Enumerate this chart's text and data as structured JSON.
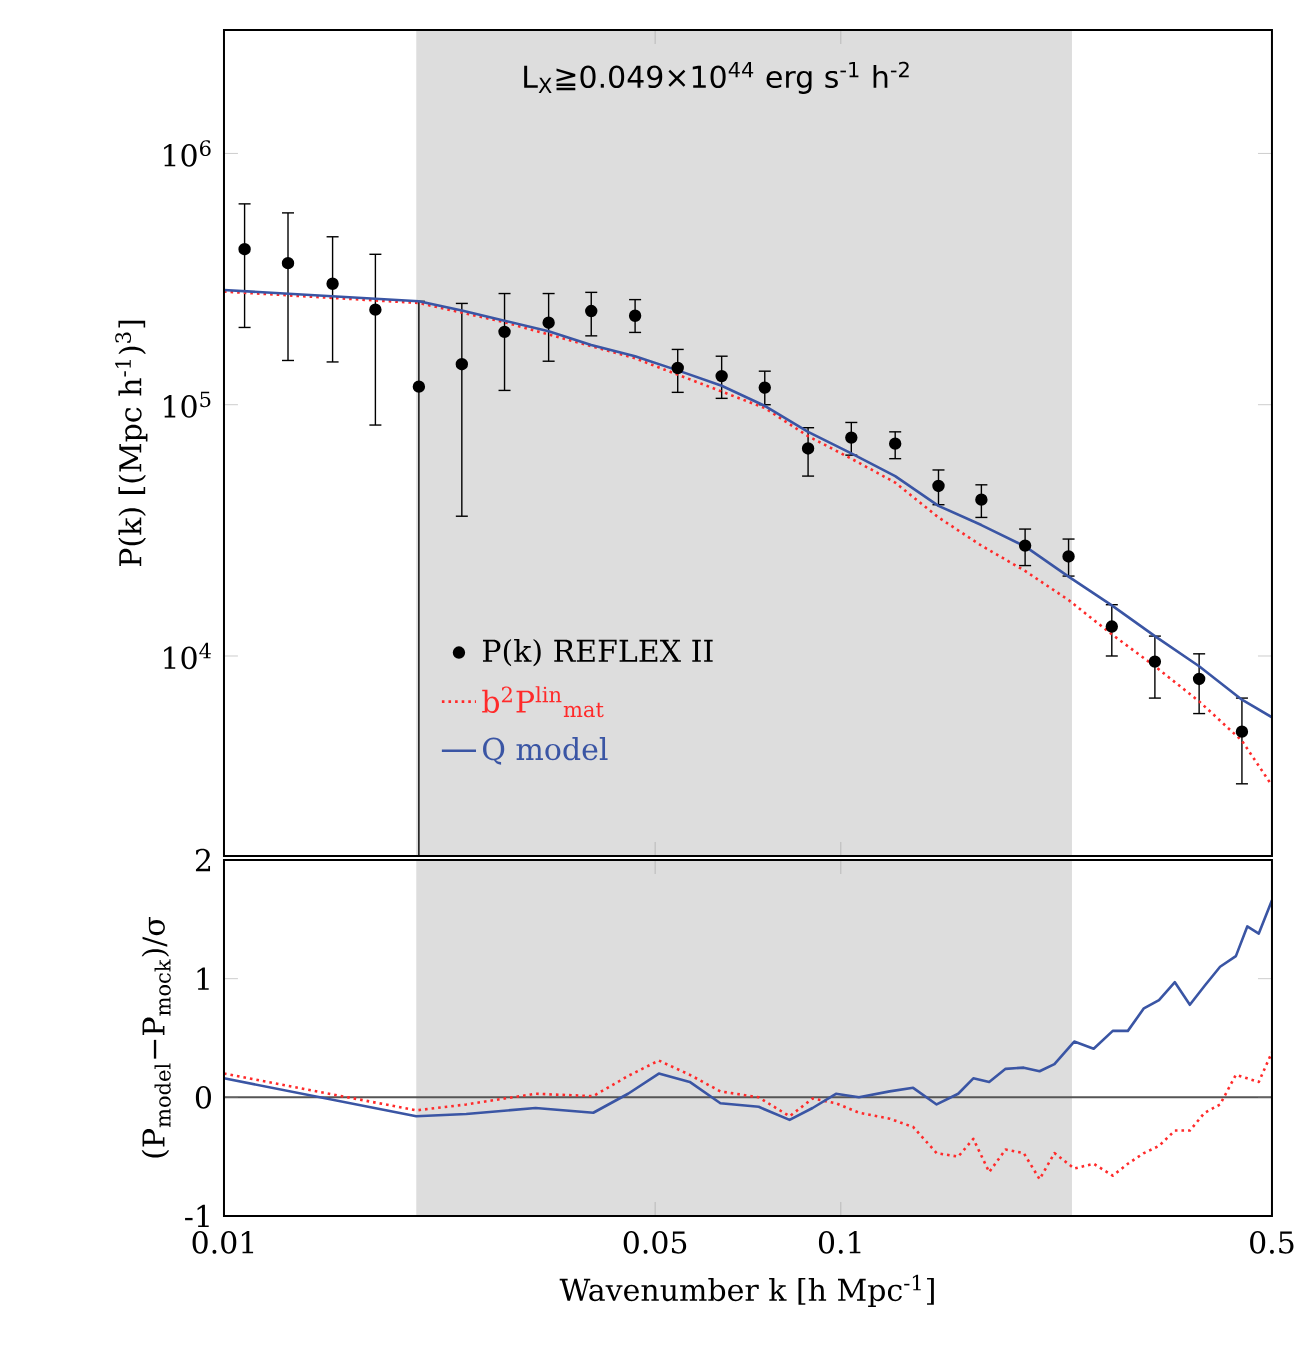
{
  "chart_data": [
    {
      "type": "line",
      "ylabel": "P(k) [(Mpc h$^{-1}$)$^{3}$]",
      "annotations": [
        "L$_{X}$≧0.049×10$^{44}$ erg s$^{-1}$ h$^{-2}$"
      ],
      "log": "xy",
      "xlim": [
        0.01,
        0.5
      ],
      "ylim": [
        1600,
        3100000
      ],
      "xticks": [
        0.01,
        0.05,
        0.1,
        0.5
      ],
      "yticks": [
        {
          "value": 10000,
          "label": "10$^{4}$"
        },
        {
          "value": 100000,
          "label": "10$^{5}$"
        },
        {
          "value": 1000000,
          "label": "10$^{6}$"
        }
      ],
      "tick_labels": "y",
      "legend": "bottom left",
      "bands": [
        {
          "axis": "x",
          "from": 0.0205,
          "to": 0.237,
          "color": "#dddddd"
        }
      ],
      "series": [
        {
          "name": "P(k) REFLEX II",
          "type": "scatter",
          "marker": "circle",
          "color": "#000000",
          "x": [
            0.0108,
            0.0127,
            0.015,
            0.0176,
            0.0207,
            0.0243,
            0.0285,
            0.0336,
            0.0394,
            0.0464,
            0.0544,
            0.0641,
            0.0753,
            0.0885,
            0.104,
            0.1225,
            0.144,
            0.169,
            0.199,
            0.234,
            0.275,
            0.323,
            0.381,
            0.447
          ],
          "values": [
            416000,
            366000,
            303000,
            239000,
            118000,
            145000,
            195000,
            212000,
            236000,
            226000,
            140000,
            130000,
            117000,
            67000,
            74000,
            70000,
            47500,
            41900,
            27500,
            24900,
            13100,
            9500,
            8100,
            5000
          ],
          "errors": [
            [
              203000,
              630000
            ],
            [
              150000,
              580000
            ],
            [
              148000,
              466000
            ],
            [
              83000,
              397000
            ],
            [
              1600,
              258000
            ],
            [
              36000,
              253000
            ],
            [
              114000,
              277000
            ],
            [
              149000,
              277000
            ],
            [
              188000,
              280000
            ],
            [
              194000,
              262000
            ],
            [
              112000,
              166000
            ],
            [
              106000,
              156000
            ],
            [
              100000,
              136000
            ],
            [
              52000,
              81000
            ],
            [
              63000,
              85000
            ],
            [
              61000,
              78000
            ],
            [
              40000,
              55000
            ],
            [
              35600,
              48000
            ],
            [
              22900,
              32000
            ],
            [
              20800,
              29200
            ],
            [
              10000,
              16000
            ],
            [
              6800,
              12000
            ],
            [
              5900,
              10200
            ],
            [
              3100,
              6800
            ]
          ]
        },
        {
          "name": "b$^{2}$P$^{lin}$$_{mat}$",
          "marker": "none",
          "line_style": "dotted",
          "color": "#ff2a2a",
          "x": [
            0.01,
            0.0207,
            0.0285,
            0.0464,
            0.0753,
            0.0885,
            0.104,
            0.1225,
            0.144,
            0.169,
            0.199,
            0.234,
            0.275,
            0.323,
            0.381,
            0.447,
            0.5
          ],
          "values": [
            282000,
            254000,
            213000,
            153000,
            97000,
            75000,
            61000,
            49000,
            35600,
            27500,
            21800,
            16700,
            12200,
            9100,
            6600,
            4600,
            3050
          ]
        },
        {
          "name": "Q model",
          "marker": "none",
          "line_style": "solid",
          "color": "#3a55a4",
          "x": [
            0.01,
            0.0207,
            0.0243,
            0.0285,
            0.0336,
            0.0394,
            0.0464,
            0.0544,
            0.0641,
            0.0753,
            0.0885,
            0.104,
            0.1225,
            0.144,
            0.169,
            0.199,
            0.234,
            0.275,
            0.323,
            0.381,
            0.447,
            0.5
          ],
          "values": [
            286000,
            258000,
            237000,
            216000,
            196000,
            173000,
            156000,
            137000,
            119000,
            99000,
            78000,
            64000,
            52000,
            39600,
            33200,
            27300,
            20700,
            15900,
            12000,
            9100,
            6700,
            5700
          ]
        }
      ]
    },
    {
      "type": "line",
      "xlabel": "Wavenumber k [h Mpc$^{-1}$]",
      "ylabel": "(P$_{model}$−P$_{mock}$)/σ",
      "log": "x",
      "xlim": [
        0.01,
        0.5
      ],
      "ylim": [
        -1,
        2
      ],
      "xticks": [
        0.01,
        0.05,
        0.1,
        0.5
      ],
      "yticks": [
        -1,
        0,
        1,
        2
      ],
      "bands": [
        {
          "axis": "x",
          "from": 0.0205,
          "to": 0.237,
          "color": "#dddddd"
        }
      ],
      "ref_lines": [
        {
          "axis": "y",
          "value": 0,
          "color": "#555555"
        }
      ],
      "series": [
        {
          "line_style": "dotted",
          "color": "#ff2a2a",
          "x": [
            0.01,
            0.0205,
            0.0247,
            0.032,
            0.0397,
            0.0452,
            0.0507,
            0.0569,
            0.0638,
            0.0736,
            0.0826,
            0.09,
            0.0982,
            0.107,
            0.12,
            0.131,
            0.143,
            0.155,
            0.164,
            0.174,
            0.185,
            0.198,
            0.21,
            0.222,
            0.239,
            0.257,
            0.276,
            0.292,
            0.31,
            0.328,
            0.348,
            0.368,
            0.389,
            0.412,
            0.437,
            0.456,
            0.476,
            0.5
          ],
          "values": [
            0.2,
            -0.11,
            -0.06,
            0.03,
            0.01,
            0.18,
            0.31,
            0.19,
            0.05,
            0.0,
            -0.16,
            -0.01,
            -0.05,
            -0.13,
            -0.18,
            -0.25,
            -0.47,
            -0.5,
            -0.35,
            -0.63,
            -0.44,
            -0.47,
            -0.69,
            -0.47,
            -0.6,
            -0.56,
            -0.66,
            -0.56,
            -0.47,
            -0.41,
            -0.28,
            -0.28,
            -0.13,
            -0.06,
            0.19,
            0.16,
            0.13,
            0.38
          ]
        },
        {
          "line_style": "solid",
          "color": "#3a55a4",
          "x": [
            0.01,
            0.0205,
            0.0247,
            0.032,
            0.0397,
            0.0452,
            0.0507,
            0.0569,
            0.0638,
            0.0736,
            0.0826,
            0.09,
            0.0982,
            0.107,
            0.12,
            0.131,
            0.143,
            0.155,
            0.164,
            0.174,
            0.185,
            0.198,
            0.21,
            0.222,
            0.239,
            0.257,
            0.276,
            0.292,
            0.31,
            0.328,
            0.348,
            0.368,
            0.389,
            0.412,
            0.437,
            0.456,
            0.476,
            0.5
          ],
          "values": [
            0.16,
            -0.16,
            -0.14,
            -0.09,
            -0.13,
            0.03,
            0.2,
            0.13,
            -0.05,
            -0.08,
            -0.19,
            -0.09,
            0.03,
            0.0,
            0.05,
            0.08,
            -0.06,
            0.03,
            0.16,
            0.13,
            0.24,
            0.25,
            0.22,
            0.28,
            0.47,
            0.41,
            0.56,
            0.56,
            0.75,
            0.82,
            0.97,
            0.78,
            0.94,
            1.1,
            1.19,
            1.44,
            1.38,
            1.66
          ]
        }
      ]
    }
  ]
}
